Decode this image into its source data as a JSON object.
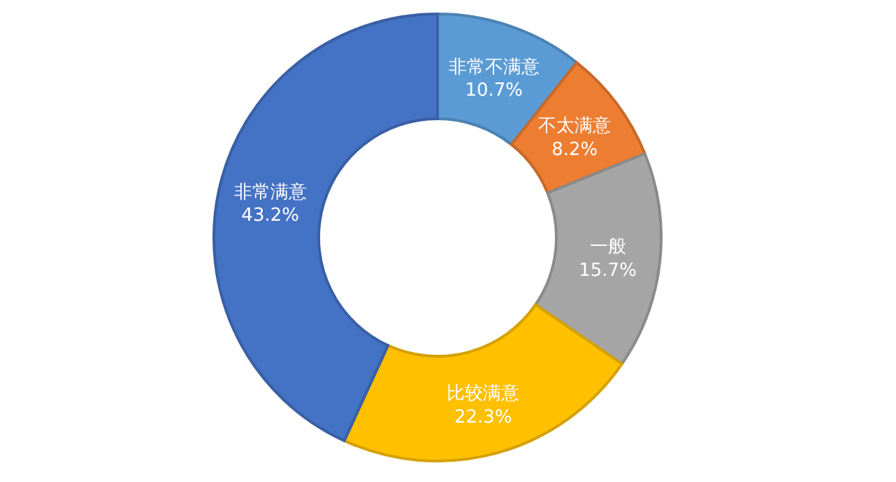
{
  "chart_data": {
    "type": "donut",
    "categories": [
      "非常不满意",
      "不太满意",
      "一般",
      "比较满意",
      "非常满意"
    ],
    "values": [
      10.7,
      8.2,
      15.7,
      22.3,
      43.2
    ],
    "colors": [
      "#5b9bd5",
      "#ed7d31",
      "#a5a5a5",
      "#ffc000",
      "#4472c4"
    ],
    "value_labels": [
      "10.7%",
      "8.2%",
      "15.7%",
      "22.3%",
      "43.2%"
    ]
  }
}
